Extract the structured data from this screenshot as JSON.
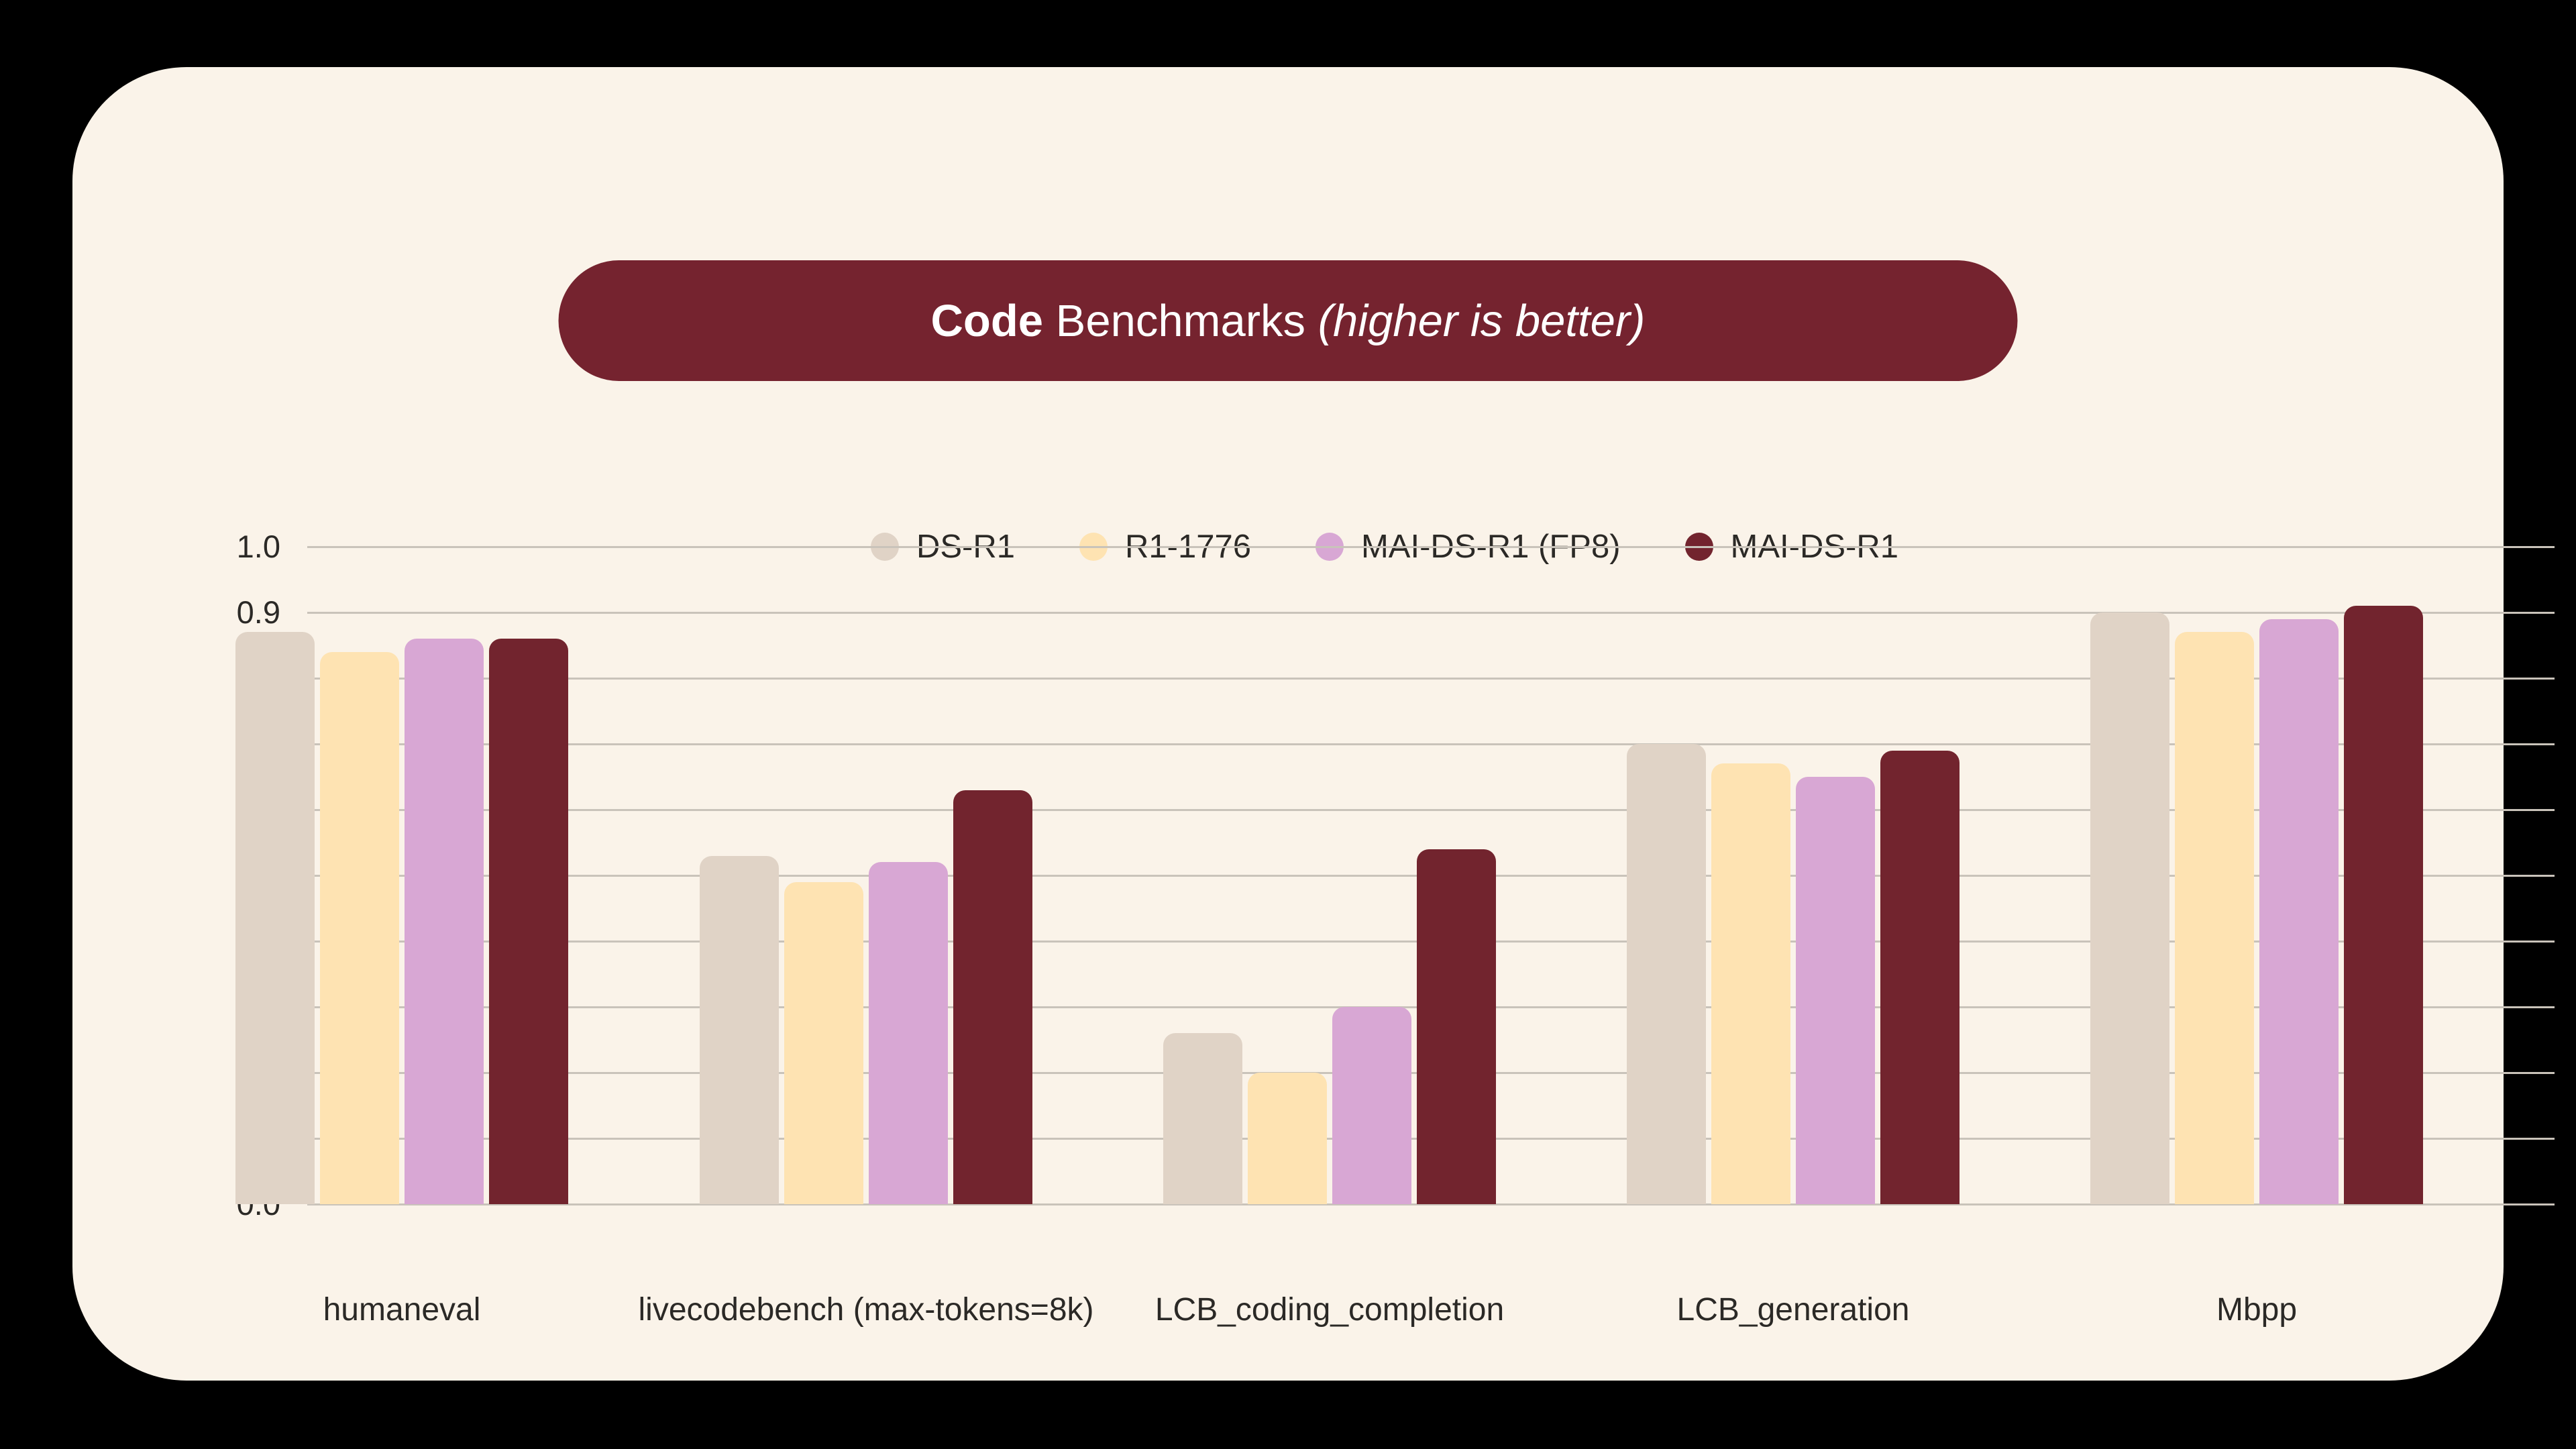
{
  "page": {
    "outer_background": "#000000",
    "card_background": "#FAF3E9",
    "text_color": "#2b2926",
    "gridline_color": "#c9c3ba"
  },
  "title": {
    "bold": "Code",
    "regular": " Benchmarks ",
    "italic": "(higher is better)",
    "pill_background": "#75232F",
    "text_color": "#FFFFFF"
  },
  "chart_data": {
    "type": "bar",
    "title": "Code Benchmarks (higher is better)",
    "categories": [
      "humaneval",
      "livecodebench (max-tokens=8k)",
      "LCB_coding_completion",
      "LCB_generation",
      "Mbpp"
    ],
    "series": [
      {
        "name": "DS-R1",
        "color": "#E0D3C6",
        "values": [
          0.87,
          0.53,
          0.26,
          0.7,
          0.9
        ]
      },
      {
        "name": "R1-1776",
        "color": "#FEE3B2",
        "values": [
          0.84,
          0.49,
          0.2,
          0.67,
          0.87
        ]
      },
      {
        "name": "MAI-DS-R1 (FP8)",
        "color": "#D8A7D4",
        "values": [
          0.86,
          0.52,
          0.3,
          0.65,
          0.89
        ]
      },
      {
        "name": "MAI-DS-R1",
        "color": "#72242E",
        "values": [
          0.86,
          0.63,
          0.54,
          0.69,
          0.91
        ]
      }
    ],
    "xlabel": "",
    "ylabel": "",
    "ylim": [
      0.0,
      1.0
    ],
    "yticks": [
      "1.0",
      "0.9",
      "0.8",
      "0.7",
      "0.6",
      "0.5",
      "0.4",
      "0.3",
      "0.2",
      "0.1",
      "0.0"
    ],
    "grid": "horizontal",
    "legend_position": "top-center"
  }
}
